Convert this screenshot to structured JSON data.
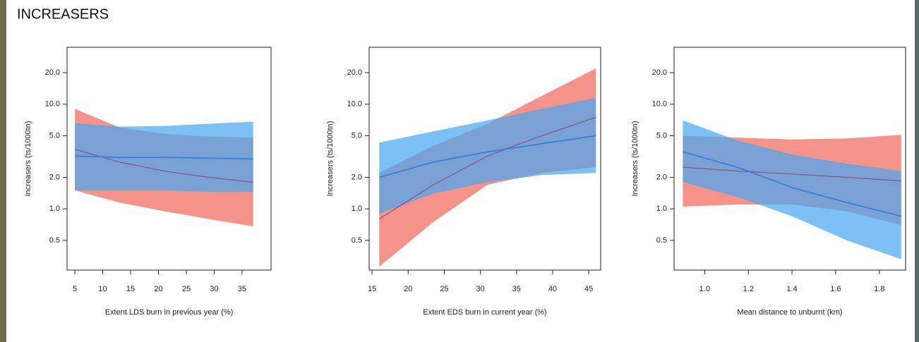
{
  "title": "INCREASERS",
  "chart_data": [
    {
      "type": "line",
      "log_y": true,
      "grid": false,
      "x_label": "Extent LDS burn in previous year (%)",
      "y_label": "Increasers (ts/1000tn)",
      "xlim": [
        3.6,
        40.2
      ],
      "xticks": [
        5,
        10,
        15,
        20,
        25,
        30,
        35
      ],
      "ylim": [
        0.26,
        35
      ],
      "yticks": [
        0.5,
        {
          "value": 1,
          "label": "1.0"
        },
        {
          "value": 2,
          "label": "2.0"
        },
        {
          "value": 5,
          "label": "5.0"
        },
        {
          "value": 10,
          "label": "10.0"
        },
        {
          "value": 20,
          "label": "20.0"
        }
      ],
      "x": [
        5,
        13,
        21,
        29,
        37
      ],
      "series": [
        {
          "color": "#f4877e",
          "line_color": "#8a4f86",
          "values": [
            3.7,
            2.8,
            2.3,
            2.0,
            1.8
          ],
          "lower": [
            1.5,
            1.15,
            0.95,
            0.8,
            0.68
          ],
          "upper": [
            9.0,
            6.0,
            5.2,
            4.9,
            4.8
          ]
        },
        {
          "color": "#45a6f2",
          "line_color": "#2f7be0",
          "values": [
            3.2,
            3.1,
            3.1,
            3.05,
            3.0
          ],
          "lower": [
            1.5,
            1.5,
            1.5,
            1.45,
            1.45
          ],
          "upper": [
            6.6,
            6.1,
            6.2,
            6.5,
            6.8
          ]
        }
      ]
    },
    {
      "type": "line",
      "log_y": true,
      "grid": false,
      "x_label": "Extent EDS burn in current year (%)",
      "y_label": "Increasers (ts/1000tn)",
      "xlim": [
        14.6,
        46.65
      ],
      "xticks": [
        15,
        20,
        25,
        30,
        35,
        40,
        45
      ],
      "ylim": [
        0.26,
        35
      ],
      "yticks": [
        0.5,
        {
          "value": 1,
          "label": "1.0"
        },
        {
          "value": 2,
          "label": "2.0"
        },
        {
          "value": 5,
          "label": "5.0"
        },
        {
          "value": 10,
          "label": "10.0"
        },
        {
          "value": 20,
          "label": "20.0"
        }
      ],
      "x": [
        16,
        23.5,
        31,
        38.5,
        46
      ],
      "series": [
        {
          "color": "#f4877e",
          "line_color": "#8a4f86",
          "values": [
            0.8,
            1.7,
            3.2,
            5.0,
            7.5
          ],
          "lower": [
            0.28,
            0.75,
            1.7,
            2.2,
            2.5
          ],
          "upper": [
            2.2,
            4.0,
            6.5,
            12,
            22
          ]
        },
        {
          "color": "#45a6f2",
          "line_color": "#2f7be0",
          "values": [
            2.0,
            2.8,
            3.5,
            4.2,
            5.0
          ],
          "lower": [
            0.9,
            1.4,
            1.8,
            2.1,
            2.2
          ],
          "upper": [
            4.3,
            5.5,
            7.0,
            9.0,
            11.5
          ]
        }
      ]
    },
    {
      "type": "line",
      "log_y": true,
      "grid": false,
      "x_label": "Mean distance to unburnt (km)",
      "y_label": "Increasers (ts/1000tn)",
      "xlim": [
        0.86,
        1.92
      ],
      "xticks": [
        {
          "value": 1,
          "label": "1.0"
        },
        1.2,
        1.4,
        1.6,
        1.8
      ],
      "ylim": [
        0.26,
        35
      ],
      "yticks": [
        0.5,
        {
          "value": 1,
          "label": "1.0"
        },
        {
          "value": 2,
          "label": "2.0"
        },
        {
          "value": 5,
          "label": "5.0"
        },
        {
          "value": 10,
          "label": "10.0"
        },
        {
          "value": 20,
          "label": "20.0"
        }
      ],
      "x": [
        0.9,
        1.15,
        1.4,
        1.65,
        1.9
      ],
      "series": [
        {
          "color": "#f4877e",
          "line_color": "#8a4f86",
          "values": [
            2.5,
            2.3,
            2.15,
            2.0,
            1.85
          ],
          "lower": [
            1.05,
            1.1,
            1.1,
            0.95,
            0.7
          ],
          "upper": [
            5.0,
            4.8,
            4.6,
            4.7,
            5.1
          ]
        },
        {
          "color": "#45a6f2",
          "line_color": "#2f7be0",
          "values": [
            3.5,
            2.5,
            1.6,
            1.15,
            0.85
          ],
          "lower": [
            1.8,
            1.3,
            0.85,
            0.5,
            0.33
          ],
          "upper": [
            7.0,
            4.5,
            3.3,
            2.7,
            2.3
          ]
        }
      ]
    }
  ]
}
